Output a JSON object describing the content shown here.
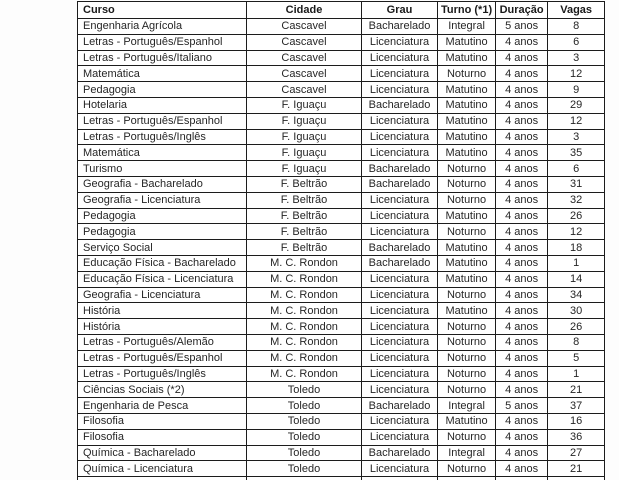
{
  "table": {
    "headers": [
      "Curso",
      "Cidade",
      "Grau",
      "Turno (*1)",
      "Duração",
      "Vagas"
    ],
    "column_keys": [
      "curso",
      "cidade",
      "grau",
      "turno",
      "duracao",
      "vagas"
    ],
    "rows": [
      [
        "Engenharia Agrícola",
        "Cascavel",
        "Bacharelado",
        "Integral",
        "5 anos",
        "8"
      ],
      [
        "Letras - Português/Espanhol",
        "Cascavel",
        "Licenciatura",
        "Matutino",
        "4 anos",
        "6"
      ],
      [
        "Letras - Português/Italiano",
        "Cascavel",
        "Licenciatura",
        "Matutino",
        "4 anos",
        "3"
      ],
      [
        "Matemática",
        "Cascavel",
        "Licenciatura",
        "Noturno",
        "4 anos",
        "12"
      ],
      [
        "Pedagogia",
        "Cascavel",
        "Licenciatura",
        "Matutino",
        "4 anos",
        "9"
      ],
      [
        "Hotelaria",
        "F. Iguaçu",
        "Bacharelado",
        "Matutino",
        "4 anos",
        "29"
      ],
      [
        "Letras - Português/Espanhol",
        "F. Iguaçu",
        "Licenciatura",
        "Matutino",
        "4 anos",
        "12"
      ],
      [
        "Letras - Português/Inglês",
        "F. Iguaçu",
        "Licenciatura",
        "Matutino",
        "4 anos",
        "3"
      ],
      [
        "Matemática",
        "F. Iguaçu",
        "Licenciatura",
        "Matutino",
        "4 anos",
        "35"
      ],
      [
        "Turismo",
        "F. Iguaçu",
        "Bacharelado",
        "Noturno",
        "4 anos",
        "6"
      ],
      [
        "Geografia - Bacharelado",
        "F. Beltrão",
        "Bacharelado",
        "Noturno",
        "4 anos",
        "31"
      ],
      [
        "Geografia - Licenciatura",
        "F. Beltrão",
        "Licenciatura",
        "Noturno",
        "4 anos",
        "32"
      ],
      [
        "Pedagogia",
        "F. Beltrão",
        "Licenciatura",
        "Matutino",
        "4 anos",
        "26"
      ],
      [
        "Pedagogia",
        "F. Beltrão",
        "Licenciatura",
        "Noturno",
        "4 anos",
        "12"
      ],
      [
        "Serviço Social",
        "F. Beltrão",
        "Bacharelado",
        "Matutino",
        "4 anos",
        "18"
      ],
      [
        "Educação Física - Bacharelado",
        "M. C. Rondon",
        "Bacharelado",
        "Matutino",
        "4 anos",
        "1"
      ],
      [
        "Educação Física - Licenciatura",
        "M. C. Rondon",
        "Licenciatura",
        "Matutino",
        "4 anos",
        "14"
      ],
      [
        "Geografia - Licenciatura",
        "M. C. Rondon",
        "Licenciatura",
        "Noturno",
        "4 anos",
        "34"
      ],
      [
        "História",
        "M. C. Rondon",
        "Licenciatura",
        "Matutino",
        "4 anos",
        "30"
      ],
      [
        "História",
        "M. C. Rondon",
        "Licenciatura",
        "Noturno",
        "4 anos",
        "26"
      ],
      [
        "Letras - Português/Alemão",
        "M. C. Rondon",
        "Licenciatura",
        "Noturno",
        "4 anos",
        "8"
      ],
      [
        "Letras - Português/Espanhol",
        "M. C. Rondon",
        "Licenciatura",
        "Noturno",
        "4 anos",
        "5"
      ],
      [
        "Letras - Português/Inglês",
        "M. C. Rondon",
        "Licenciatura",
        "Noturno",
        "4 anos",
        "1"
      ],
      [
        "Ciências Sociais (*2)",
        "Toledo",
        "Licenciatura",
        "Noturno",
        "4 anos",
        "21"
      ],
      [
        "Engenharia de Pesca",
        "Toledo",
        "Bacharelado",
        "Integral",
        "5 anos",
        "37"
      ],
      [
        "Filosofia",
        "Toledo",
        "Licenciatura",
        "Matutino",
        "4 anos",
        "16"
      ],
      [
        "Filosofia",
        "Toledo",
        "Licenciatura",
        "Noturno",
        "4 anos",
        "36"
      ],
      [
        "Química - Bacharelado",
        "Toledo",
        "Bacharelado",
        "Integral",
        "4 anos",
        "27"
      ],
      [
        "Química - Licenciatura",
        "Toledo",
        "Licenciatura",
        "Noturno",
        "4 anos",
        "21"
      ]
    ]
  }
}
